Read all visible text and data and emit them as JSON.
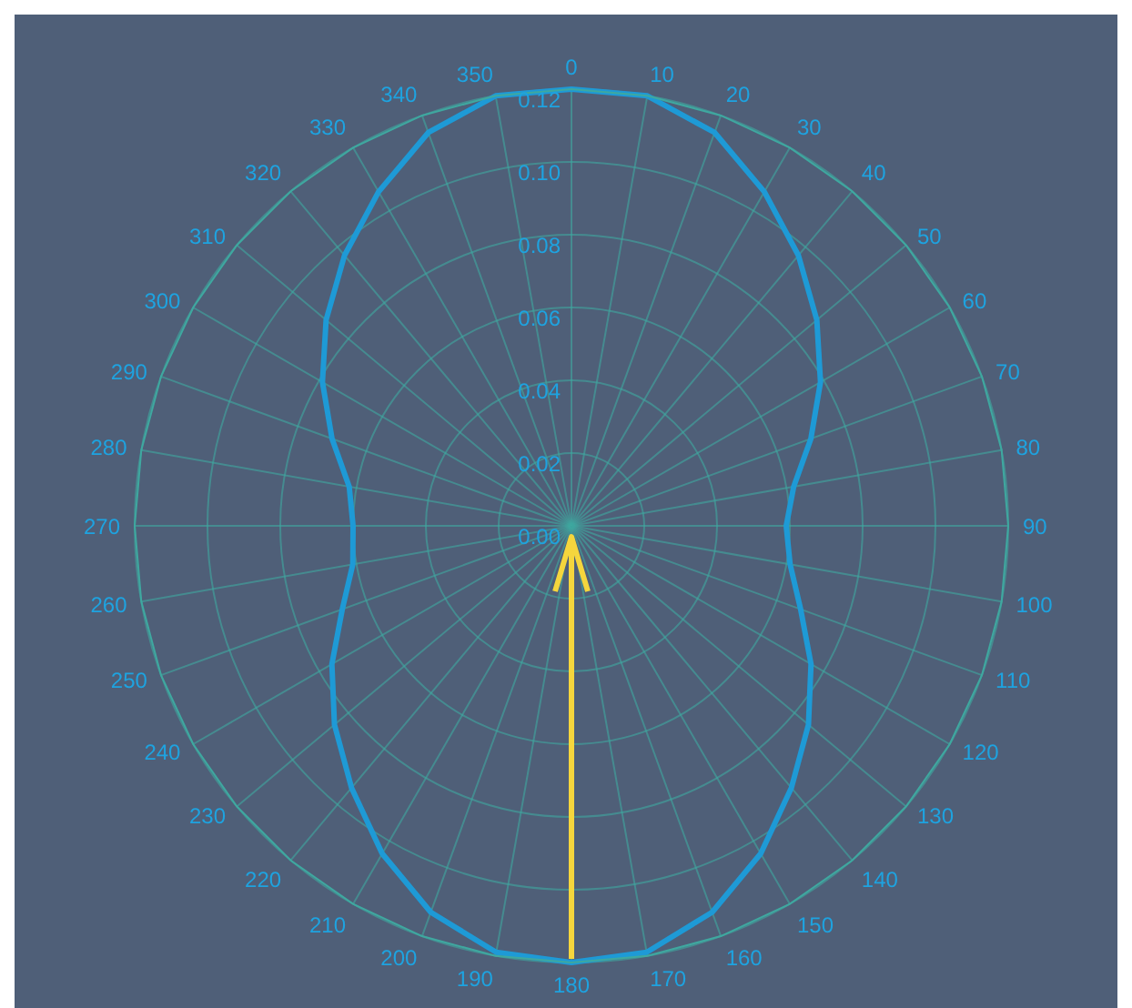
{
  "chart_data": {
    "type": "radar",
    "categories": [
      "0",
      "10",
      "20",
      "30",
      "40",
      "50",
      "60",
      "70",
      "80",
      "90",
      "100",
      "110",
      "120",
      "130",
      "140",
      "150",
      "160",
      "170",
      "180",
      "190",
      "200",
      "210",
      "220",
      "230",
      "240",
      "250",
      "260",
      "270",
      "280",
      "290",
      "300",
      "310",
      "320",
      "330",
      "340",
      "350"
    ],
    "series": [
      {
        "color": "#1e9ad6",
        "values": [
          0.12,
          0.12,
          0.115,
          0.106,
          0.097,
          0.088,
          0.079,
          0.07,
          0.062,
          0.059,
          0.061,
          0.067,
          0.076,
          0.085,
          0.094,
          0.104,
          0.113,
          0.119,
          0.12,
          0.119,
          0.113,
          0.104,
          0.094,
          0.085,
          0.076,
          0.067,
          0.061,
          0.06,
          0.062,
          0.07,
          0.079,
          0.088,
          0.097,
          0.106,
          0.115,
          0.12
        ]
      }
    ],
    "ylim": [
      0,
      0.12
    ],
    "yticks": [
      {
        "value": 0,
        "label": "0.00"
      },
      0.02,
      0.04,
      0.06,
      0.08,
      {
        "value": 0.1,
        "label": "0.10"
      },
      0.12
    ],
    "grid": true,
    "marker": "none",
    "line_style": "solid"
  }
}
